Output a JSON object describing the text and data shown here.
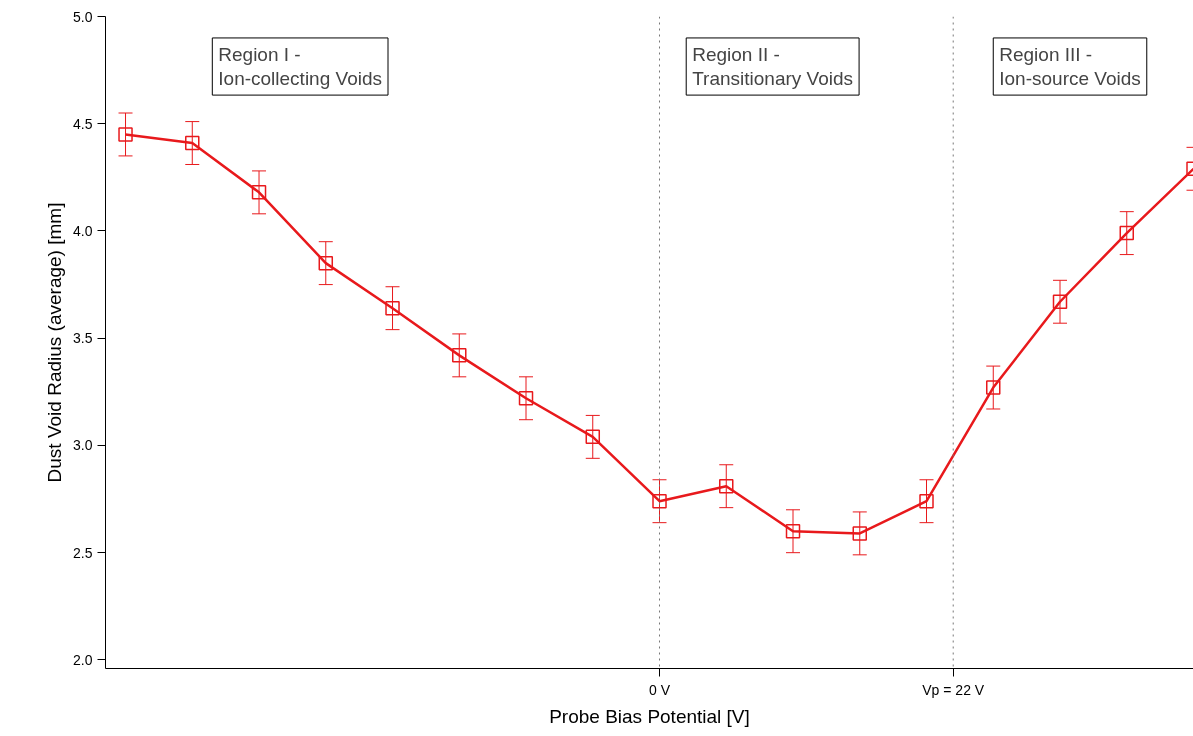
{
  "chart_data": {
    "type": "line",
    "xlabel": "Probe Bias Potential [V]",
    "ylabel": "Dust Void Radius (average) [mm]",
    "x": [
      -40,
      -35,
      -30,
      -25,
      -20,
      -15,
      -10,
      -5,
      0,
      5,
      10,
      15,
      20,
      25,
      30,
      35,
      40
    ],
    "series": [
      {
        "color": "#e8191c",
        "values": [
          4.45,
          4.41,
          4.18,
          3.85,
          3.64,
          3.42,
          3.22,
          3.04,
          2.74,
          2.81,
          2.6,
          2.59,
          2.74,
          3.27,
          3.67,
          3.99,
          4.29
        ],
        "errors": [
          0.1,
          0.1,
          0.1,
          0.1,
          0.1,
          0.1,
          0.1,
          0.1,
          0.1,
          0.1,
          0.1,
          0.1,
          0.1,
          0.1,
          0.1,
          0.1,
          0.1
        ]
      }
    ],
    "xlim": [
      -41.5,
      40
    ],
    "ylim": [
      1.96,
      5.0
    ],
    "xticks": [
      {
        "value": 0,
        "label": "0 V"
      },
      {
        "value": 22,
        "label": "Vp = 22 V"
      }
    ],
    "yticks": [
      {
        "value": 2.0,
        "label": "2.0"
      },
      {
        "value": 2.5,
        "label": "2.5"
      },
      {
        "value": 3.0,
        "label": "3.0"
      },
      {
        "value": 3.5,
        "label": "3.5"
      },
      {
        "value": 4.0,
        "label": "4.0"
      },
      {
        "value": 4.5,
        "label": "4.5"
      },
      {
        "value": 5.0,
        "label": "5.0"
      }
    ],
    "ref_lines": [
      {
        "axis": "x",
        "value": 0,
        "line_style": "dotted",
        "color": "#777777"
      },
      {
        "axis": "x",
        "value": 22,
        "line_style": "dotted",
        "color": "#777777"
      }
    ],
    "annotations": [
      "Region I -\nIon-collecting Voids",
      "Region II -\nTransitionary Voids",
      "Region III -\nIon-source Voids"
    ],
    "marker": "square",
    "line_style": "solid",
    "grid": false
  }
}
